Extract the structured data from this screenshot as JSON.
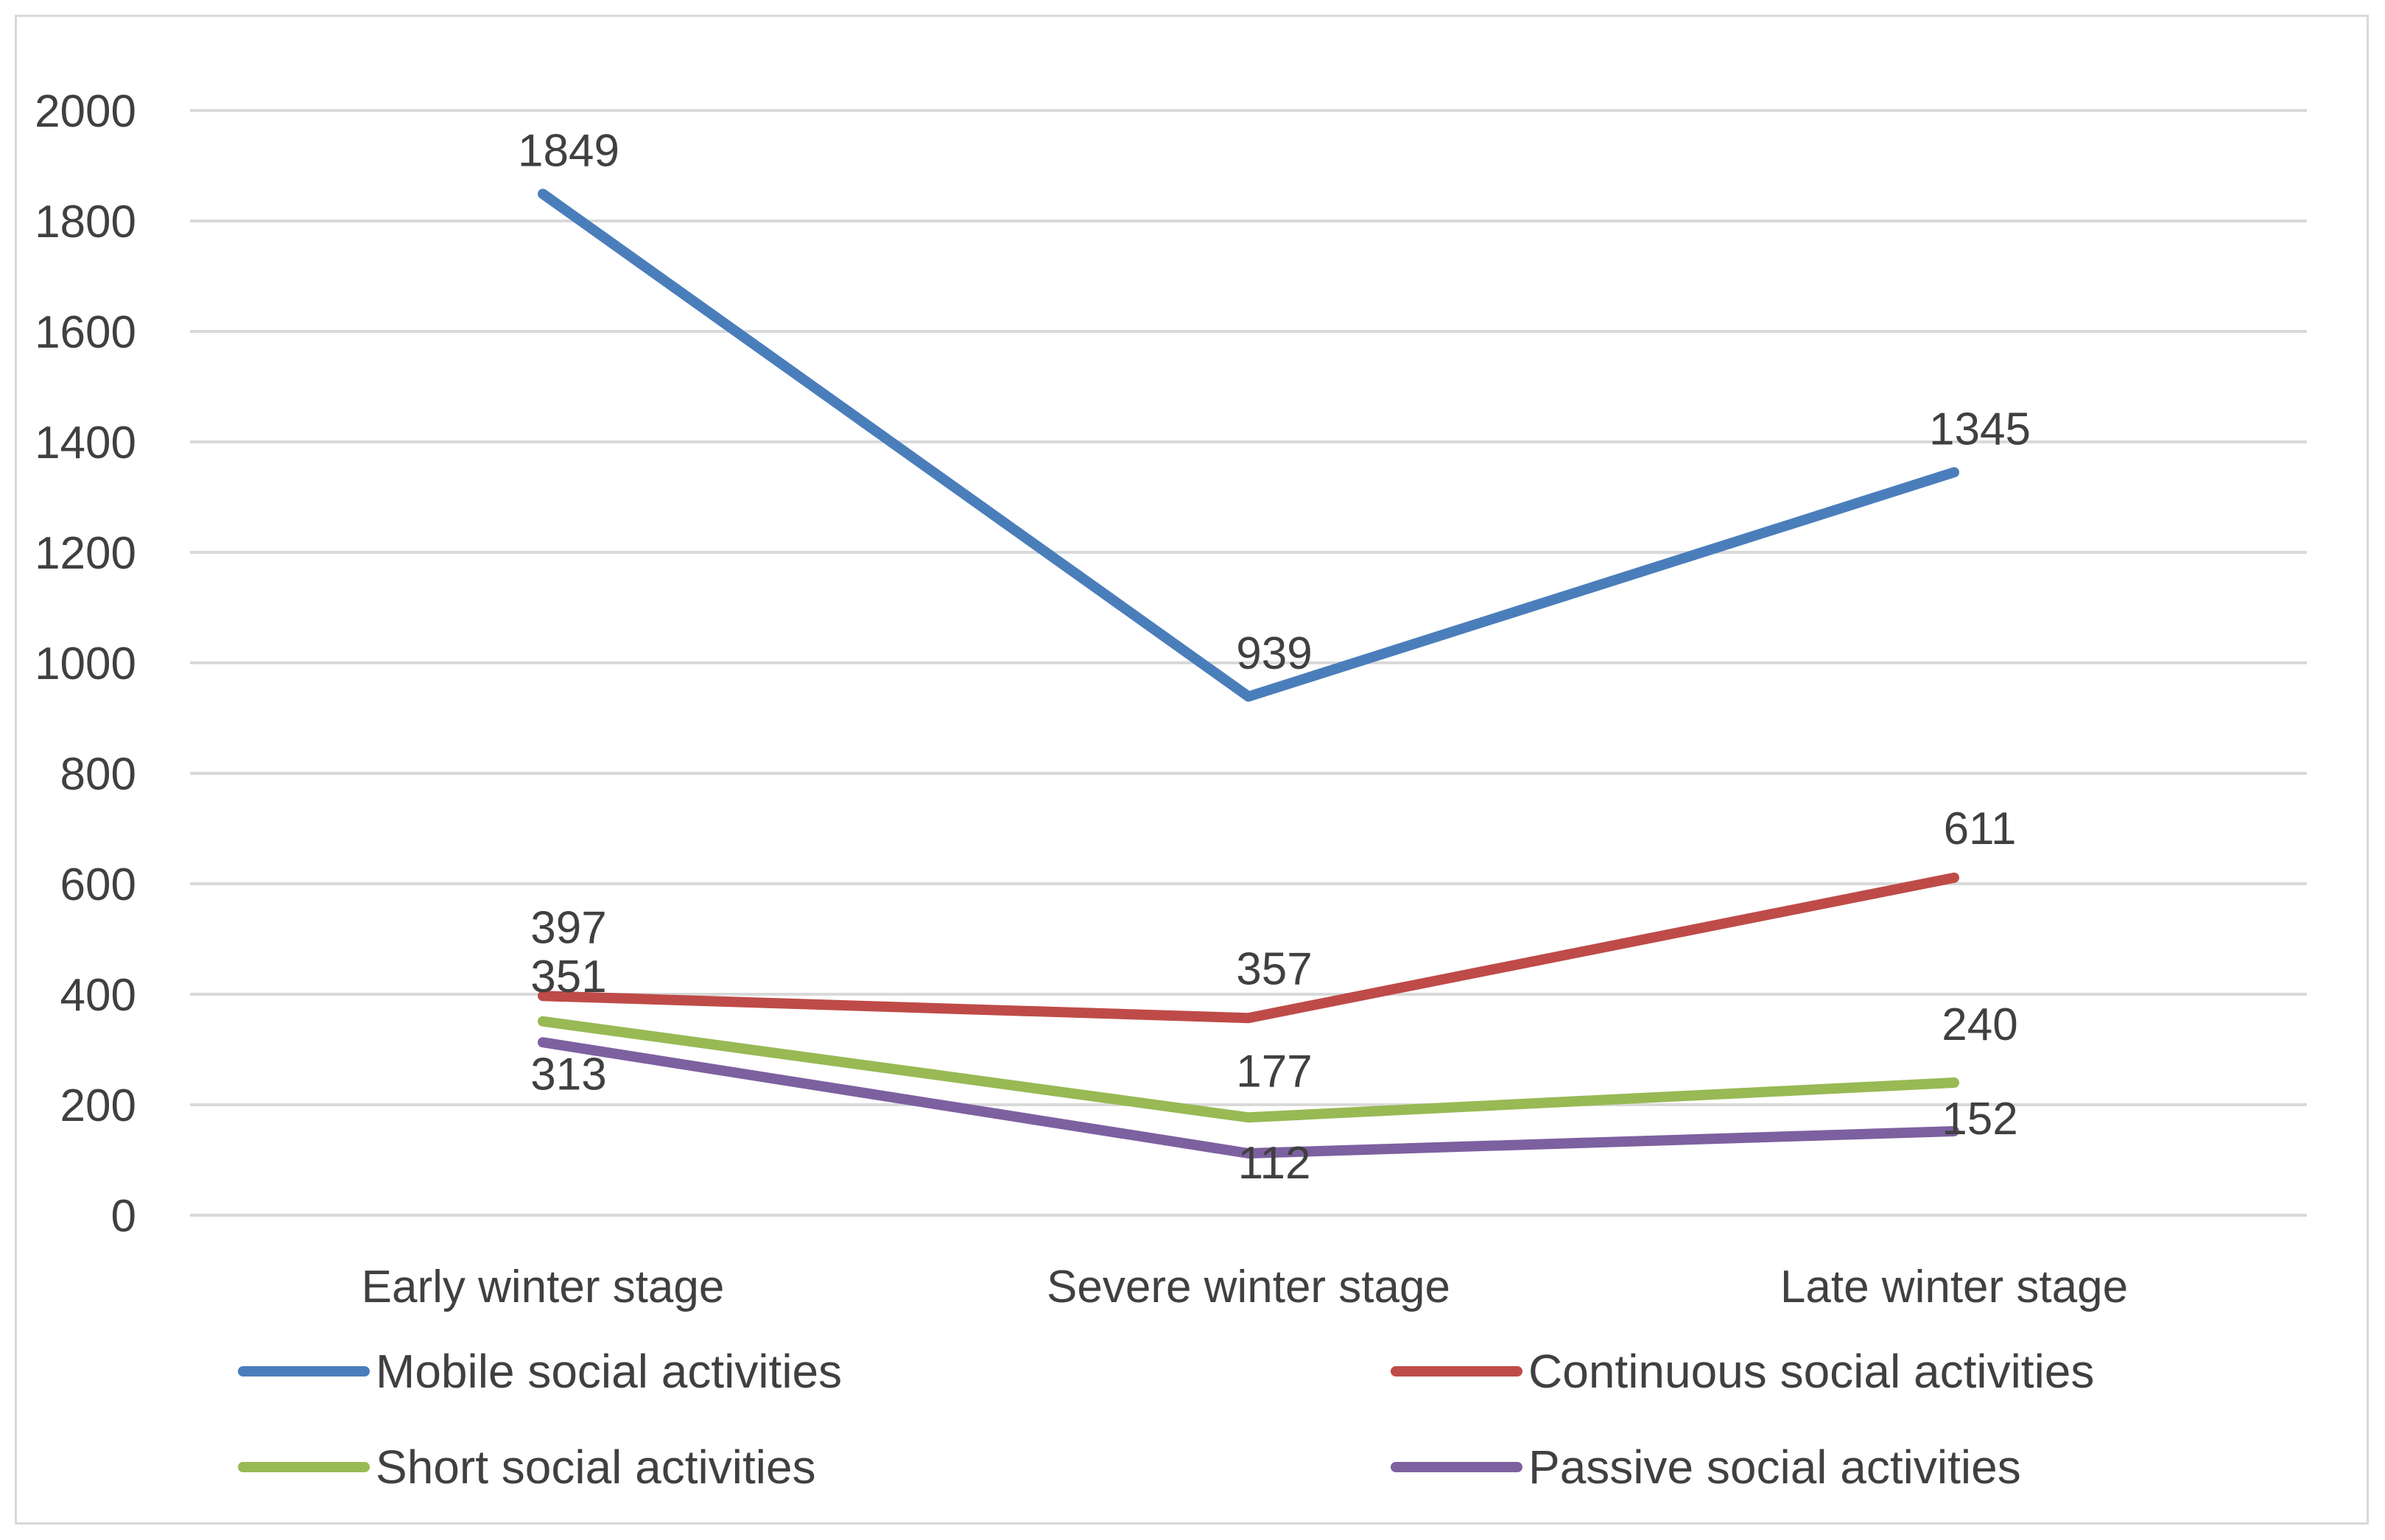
{
  "chart_data": {
    "type": "line",
    "title": "",
    "xlabel": "",
    "ylabel": "",
    "categories": [
      "Early winter stage",
      "Severe winter stage",
      "Late winter stage"
    ],
    "ylim": [
      0,
      2000
    ],
    "yticks": [
      0,
      200,
      400,
      600,
      800,
      1000,
      1200,
      1400,
      1600,
      1800,
      2000
    ],
    "grid": true,
    "legend_position": "bottom",
    "series": [
      {
        "name": "Mobile social activities",
        "color": "#4a7ebb",
        "values": [
          1849,
          939,
          1345
        ]
      },
      {
        "name": "Continuous social activities",
        "color": "#be4b48",
        "values": [
          397,
          357,
          611
        ]
      },
      {
        "name": "Short social activities",
        "color": "#98b954",
        "values": [
          351,
          177,
          240
        ]
      },
      {
        "name": "Passive social activities",
        "color": "#7d60a0",
        "values": [
          313,
          112,
          152
        ]
      }
    ]
  }
}
